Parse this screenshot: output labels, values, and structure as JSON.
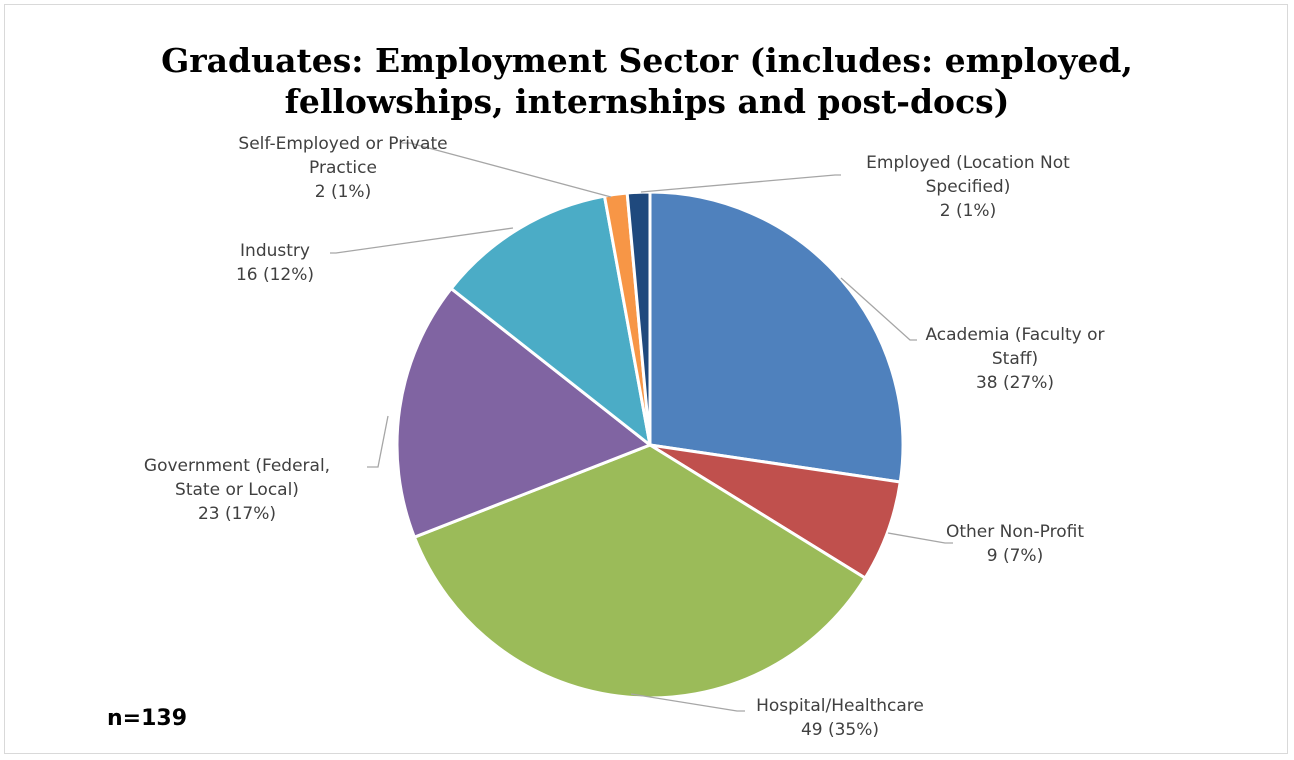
{
  "chart_data": {
    "type": "pie",
    "title_lines": [
      "Graduates: Employment Sector (includes: employed,",
      "fellowships, internships and post-docs)"
    ],
    "note": "n=139",
    "start_angle_deg": 0,
    "direction": "clockwise",
    "slices": [
      {
        "name": "Academia (Faculty or Staff)",
        "label_lines": [
          "Academia (Faculty or",
          "Staff)"
        ],
        "value": 38,
        "percent": "27%",
        "value_text": "38 (27%)",
        "color": "#4F81BD"
      },
      {
        "name": "Other Non-Profit",
        "label_lines": [
          "Other Non-Profit"
        ],
        "value": 9,
        "percent": "7%",
        "value_text": "9 (7%)",
        "color": "#C0504D"
      },
      {
        "name": "Hospital/Healthcare",
        "label_lines": [
          "Hospital/Healthcare"
        ],
        "value": 49,
        "percent": "35%",
        "value_text": "49 (35%)",
        "color": "#9BBB59"
      },
      {
        "name": "Government (Federal, State or Local)",
        "label_lines": [
          "Government (Federal,",
          "State or Local)"
        ],
        "value": 23,
        "percent": "17%",
        "value_text": "23 (17%)",
        "color": "#8064A2"
      },
      {
        "name": "Industry",
        "label_lines": [
          "Industry"
        ],
        "value": 16,
        "percent": "12%",
        "value_text": "16 (12%)",
        "color": "#4BACC6"
      },
      {
        "name": "Self-Employed or Private Practice",
        "label_lines": [
          "Self-Employed or Private",
          "Practice"
        ],
        "value": 2,
        "percent": "1%",
        "value_text": "2 (1%)",
        "color": "#F79646"
      },
      {
        "name": "Employed (Location Not Specified)",
        "label_lines": [
          "Employed (Location Not",
          "Specified)"
        ],
        "value": 2,
        "percent": "1%",
        "value_text": "2 (1%)",
        "color": "#1F497D"
      }
    ]
  }
}
